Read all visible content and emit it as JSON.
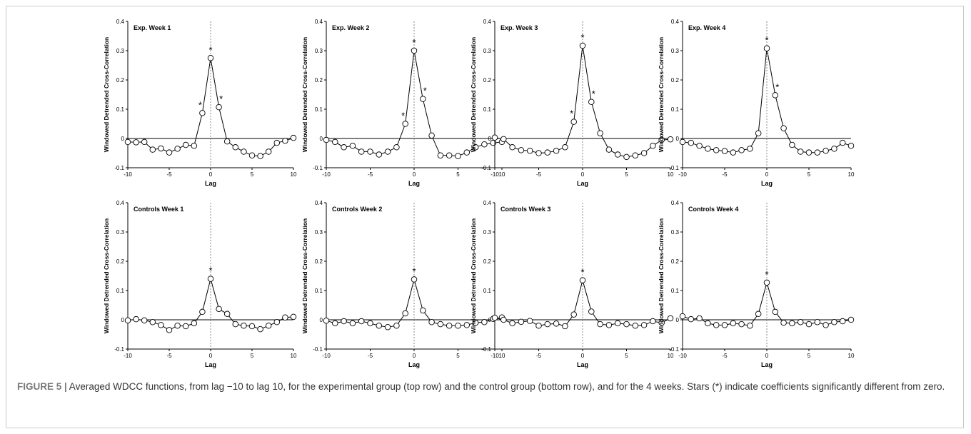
{
  "figure": {
    "caption_label": "FIGURE 5 |",
    "caption_text": " Averaged WDCC functions, from lag −10 to lag 10, for the experimental group (top row) and the control group (bottom row), and for the 4 weeks. Stars (*) indicate coefficients significantly different from zero."
  },
  "colors": {
    "line": "#000000",
    "marker_fill": "#ffffff",
    "zero_line": "#000000",
    "lag0_line": "#888888"
  },
  "chart_data": [
    {
      "type": "line",
      "title": "Exp. Week 1",
      "xlabel": "Lag",
      "ylabel": "Windowed Detrended Cross-Correlation",
      "xlim": [
        -10,
        10
      ],
      "ylim": [
        -0.1,
        0.4
      ],
      "x_ticks": [
        "-10",
        "-5",
        "0",
        "5",
        "10"
      ],
      "y_ticks": [
        "-0.1",
        "0",
        "0.1",
        "0.2",
        "0.3",
        "0.4"
      ],
      "x": [
        -10,
        -9,
        -8,
        -7,
        -6,
        -5,
        -4,
        -3,
        -2,
        -1,
        0,
        1,
        2,
        3,
        4,
        5,
        6,
        7,
        8,
        9,
        10
      ],
      "values": [
        -0.012,
        -0.013,
        -0.012,
        -0.038,
        -0.034,
        -0.048,
        -0.035,
        -0.022,
        -0.025,
        0.087,
        0.275,
        0.107,
        -0.01,
        -0.03,
        -0.045,
        -0.058,
        -0.06,
        -0.045,
        -0.015,
        -0.008,
        0.002
      ],
      "significant_lags": [
        -1,
        0,
        1
      ]
    },
    {
      "type": "line",
      "title": "Exp. Week 2",
      "xlabel": "Lag",
      "ylabel": "Windowed Detrended Cross-Correlation",
      "xlim": [
        -10,
        10
      ],
      "ylim": [
        -0.1,
        0.4
      ],
      "x_ticks": [
        "-10",
        "-5",
        "0",
        "5",
        "10"
      ],
      "y_ticks": [
        "-0.1",
        "0",
        "0.1",
        "0.2",
        "0.3",
        "0.4"
      ],
      "x": [
        -10,
        -9,
        -8,
        -7,
        -6,
        -5,
        -4,
        -3,
        -2,
        -1,
        0,
        1,
        2,
        3,
        4,
        5,
        6,
        7,
        8,
        9,
        10
      ],
      "values": [
        -0.005,
        -0.012,
        -0.03,
        -0.025,
        -0.045,
        -0.045,
        -0.055,
        -0.045,
        -0.03,
        0.05,
        0.3,
        0.135,
        0.01,
        -0.058,
        -0.058,
        -0.06,
        -0.048,
        -0.03,
        -0.02,
        -0.015,
        -0.012
      ],
      "significant_lags": [
        -1,
        0,
        1
      ]
    },
    {
      "type": "line",
      "title": "Exp. Week 3",
      "xlabel": "Lag",
      "ylabel": "Windowed Detrended Cross-Correlation",
      "xlim": [
        -10,
        10
      ],
      "ylim": [
        -0.1,
        0.4
      ],
      "x_ticks": [
        "-10",
        "-5",
        "0",
        "5",
        "10"
      ],
      "y_ticks": [
        "-0.1",
        "0",
        "0.1",
        "0.2",
        "0.3",
        "0.4"
      ],
      "x": [
        -10,
        -9,
        -8,
        -7,
        -6,
        -5,
        -4,
        -3,
        -2,
        -1,
        0,
        1,
        2,
        3,
        4,
        5,
        6,
        7,
        8,
        9,
        10
      ],
      "values": [
        0.003,
        -0.002,
        -0.03,
        -0.04,
        -0.042,
        -0.05,
        -0.048,
        -0.042,
        -0.03,
        0.057,
        0.317,
        0.125,
        0.018,
        -0.038,
        -0.055,
        -0.063,
        -0.058,
        -0.05,
        -0.025,
        -0.005,
        -0.003
      ],
      "significant_lags": [
        -1,
        0,
        1
      ]
    },
    {
      "type": "line",
      "title": "Exp. Week 4",
      "xlabel": "Lag",
      "ylabel": "Windowed Detrended Cross-Correlation",
      "xlim": [
        -10,
        10
      ],
      "ylim": [
        -0.1,
        0.4
      ],
      "x_ticks": [
        "-10",
        "-5",
        "0",
        "5",
        "10"
      ],
      "y_ticks": [
        "-0.1",
        "0",
        "0.1",
        "0.2",
        "0.3",
        "0.4"
      ],
      "x": [
        -10,
        -9,
        -8,
        -7,
        -6,
        -5,
        -4,
        -3,
        -2,
        -1,
        0,
        1,
        2,
        3,
        4,
        5,
        6,
        7,
        8,
        9,
        10
      ],
      "values": [
        -0.012,
        -0.015,
        -0.025,
        -0.035,
        -0.04,
        -0.043,
        -0.048,
        -0.04,
        -0.035,
        0.018,
        0.308,
        0.148,
        0.035,
        -0.022,
        -0.045,
        -0.048,
        -0.048,
        -0.042,
        -0.035,
        -0.015,
        -0.025
      ],
      "significant_lags": [
        0,
        1
      ]
    },
    {
      "type": "line",
      "title": "Controls Week 1",
      "xlabel": "Lag",
      "ylabel": "Windowed Detrended Cross-Correlation",
      "xlim": [
        -10,
        10
      ],
      "ylim": [
        -0.1,
        0.4
      ],
      "x_ticks": [
        "-10",
        "-5",
        "0",
        "5",
        "10"
      ],
      "y_ticks": [
        "-0.1",
        "0",
        "0.1",
        "0.2",
        "0.3",
        "0.4"
      ],
      "x": [
        -10,
        -9,
        -8,
        -7,
        -6,
        -5,
        -4,
        -3,
        -2,
        -1,
        0,
        1,
        2,
        3,
        4,
        5,
        6,
        7,
        8,
        9,
        10
      ],
      "values": [
        -0.002,
        0.002,
        -0.002,
        -0.008,
        -0.018,
        -0.035,
        -0.02,
        -0.022,
        -0.012,
        0.027,
        0.14,
        0.037,
        0.02,
        -0.015,
        -0.02,
        -0.022,
        -0.032,
        -0.02,
        -0.008,
        0.008,
        0.01
      ],
      "significant_lags": [
        0
      ]
    },
    {
      "type": "line",
      "title": "Controls Week 2",
      "xlabel": "Lag",
      "ylabel": "Windowed Detrended Cross-Correlation",
      "xlim": [
        -10,
        10
      ],
      "ylim": [
        -0.1,
        0.4
      ],
      "x_ticks": [
        "-10",
        "-5",
        "0",
        "5",
        "10"
      ],
      "y_ticks": [
        "-0.1",
        "0",
        "0.1",
        "0.2",
        "0.3",
        "0.4"
      ],
      "x": [
        -10,
        -9,
        -8,
        -7,
        -6,
        -5,
        -4,
        -3,
        -2,
        -1,
        0,
        1,
        2,
        3,
        4,
        5,
        6,
        7,
        8,
        9,
        10
      ],
      "values": [
        -0.003,
        -0.012,
        -0.005,
        -0.012,
        -0.005,
        -0.012,
        -0.02,
        -0.025,
        -0.02,
        0.022,
        0.138,
        0.032,
        -0.008,
        -0.015,
        -0.02,
        -0.02,
        -0.018,
        -0.01,
        -0.008,
        0.003,
        0.008
      ],
      "significant_lags": [
        0
      ]
    },
    {
      "type": "line",
      "title": "Controls Week 3",
      "xlabel": "Lag",
      "ylabel": "Windowed Detrended Cross-Correlation",
      "xlim": [
        -10,
        10
      ],
      "ylim": [
        -0.1,
        0.4
      ],
      "x_ticks": [
        "-10",
        "-5",
        "0",
        "5",
        "10"
      ],
      "y_ticks": [
        "-0.1",
        "0",
        "0.1",
        "0.2",
        "0.3",
        "0.4"
      ],
      "x": [
        -10,
        -9,
        -8,
        -7,
        -6,
        -5,
        -4,
        -3,
        -2,
        -1,
        0,
        1,
        2,
        3,
        4,
        5,
        6,
        7,
        8,
        9,
        10
      ],
      "values": [
        0.007,
        0.0,
        -0.012,
        -0.007,
        -0.004,
        -0.02,
        -0.015,
        -0.013,
        -0.022,
        0.018,
        0.135,
        0.028,
        -0.015,
        -0.018,
        -0.012,
        -0.015,
        -0.02,
        -0.018,
        -0.005,
        -0.01,
        0.005
      ],
      "significant_lags": [
        0
      ]
    },
    {
      "type": "line",
      "title": "Controls Week 4",
      "xlabel": "Lag",
      "ylabel": "Windowed Detrended Cross-Correlation",
      "xlim": [
        -10,
        10
      ],
      "ylim": [
        -0.1,
        0.4
      ],
      "x_ticks": [
        "-10",
        "-5",
        "0",
        "5",
        "10"
      ],
      "y_ticks": [
        "-0.1",
        "0",
        "0.1",
        "0.2",
        "0.3",
        "0.4"
      ],
      "x": [
        -10,
        -9,
        -8,
        -7,
        -6,
        -5,
        -4,
        -3,
        -2,
        -1,
        0,
        1,
        2,
        3,
        4,
        5,
        6,
        7,
        8,
        9,
        10
      ],
      "values": [
        0.012,
        0.002,
        0.005,
        -0.012,
        -0.018,
        -0.018,
        -0.012,
        -0.015,
        -0.02,
        0.02,
        0.127,
        0.027,
        -0.01,
        -0.012,
        -0.008,
        -0.015,
        -0.008,
        -0.018,
        -0.008,
        -0.005,
        0.0
      ],
      "significant_lags": [
        0
      ]
    }
  ]
}
